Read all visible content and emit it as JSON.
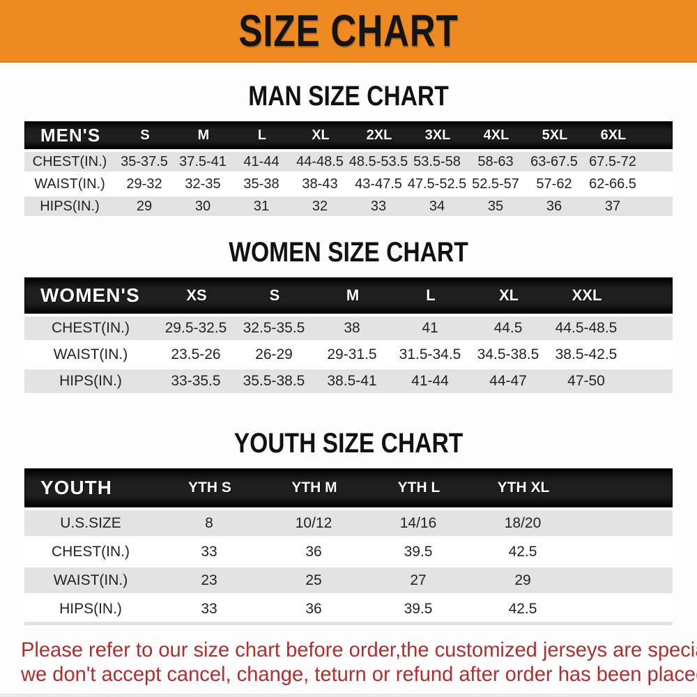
{
  "banner": {
    "title": "SIZE CHART",
    "bg_color": "#ee8a22",
    "text_color": "#141414"
  },
  "sections": [
    {
      "title": "MAN SIZE CHART",
      "header": {
        "label": "MEN'S",
        "columns": [
          "S",
          "M",
          "L",
          "XL",
          "2XL",
          "3XL",
          "4XL",
          "5XL",
          "6XL"
        ]
      },
      "rows": [
        {
          "label": "CHEST(IN.)",
          "values": [
            "35-37.5",
            "37.5-41",
            "41-44",
            "44-48.5",
            "48.5-53.5",
            "53.5-58",
            "58-63",
            "63-67.5",
            "67.5-72"
          ]
        },
        {
          "label": "WAIST(IN.)",
          "values": [
            "29-32",
            "32-35",
            "35-38",
            "38-43",
            "43-47.5",
            "47.5-52.5",
            "52.5-57",
            "57-62",
            "62-66.5"
          ]
        },
        {
          "label": "HIPS(IN.)",
          "values": [
            "29",
            "30",
            "31",
            "32",
            "33",
            "34",
            "35",
            "36",
            "37"
          ]
        }
      ]
    },
    {
      "title": "WOMEN SIZE CHART",
      "header": {
        "label": "WOMEN'S",
        "columns": [
          "XS",
          "S",
          "M",
          "L",
          "XL",
          "XXL"
        ]
      },
      "rows": [
        {
          "label": "CHEST(IN.)",
          "values": [
            "29.5-32.5",
            "32.5-35.5",
            "38",
            "41",
            "44.5",
            "44.5-48.5"
          ]
        },
        {
          "label": "WAIST(IN.)",
          "values": [
            "23.5-26",
            "26-29",
            "29-31.5",
            "31.5-34.5",
            "34.5-38.5",
            "38.5-42.5"
          ]
        },
        {
          "label": "HIPS(IN.)",
          "values": [
            "33-35.5",
            "35.5-38.5",
            "38.5-41",
            "41-44",
            "44-47",
            "47-50"
          ]
        }
      ]
    },
    {
      "title": "YOUTH SIZE CHART",
      "header": {
        "label": "YOUTH",
        "columns": [
          "YTH S",
          "YTH M",
          "YTH L",
          "YTH XL"
        ]
      },
      "rows": [
        {
          "label": "U.S.SIZE",
          "values": [
            "8",
            "10/12",
            "14/16",
            "18/20"
          ]
        },
        {
          "label": "CHEST(IN.)",
          "values": [
            "33",
            "36",
            "39.5",
            "42.5"
          ]
        },
        {
          "label": "WAIST(IN.)",
          "values": [
            "23",
            "25",
            "27",
            "29"
          ]
        },
        {
          "label": "HIPS(IN.)",
          "values": [
            "33",
            "36",
            "39.5",
            "42.5"
          ]
        }
      ]
    }
  ],
  "footer_note": {
    "line1": "Please refer to our size chart before order,the customized jerseys are special products,",
    "line2": "we don't accept cancel, change, teturn or refund after order has been placed!",
    "text_color": "#b02e2e"
  },
  "row_colors": {
    "stripe": "#e3e3e3",
    "plain": "#ffffff",
    "header_bg": "#1e1e1e"
  }
}
